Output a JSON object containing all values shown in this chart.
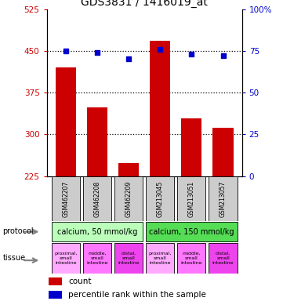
{
  "title": "GDS3831 / 1416019_at",
  "samples": [
    "GSM462207",
    "GSM462208",
    "GSM462209",
    "GSM213045",
    "GSM213051",
    "GSM213057"
  ],
  "bar_values": [
    420,
    348,
    248,
    468,
    328,
    312
  ],
  "dot_values": [
    75,
    74,
    70,
    76,
    73,
    72
  ],
  "bar_color": "#cc0000",
  "dot_color": "#0000cc",
  "ylim_left": [
    225,
    525
  ],
  "ylim_right": [
    0,
    100
  ],
  "yticks_left": [
    225,
    300,
    375,
    450,
    525
  ],
  "yticks_right": [
    0,
    25,
    50,
    75,
    100
  ],
  "ytick_labels_left": [
    "225",
    "300",
    "375",
    "450",
    "525"
  ],
  "ytick_labels_right": [
    "0",
    "25",
    "50",
    "75",
    "100%"
  ],
  "left_axis_color": "#cc0000",
  "right_axis_color": "#0000cc",
  "protocol_labels": [
    "calcium, 50 mmol/kg",
    "calcium, 150 mmol/kg"
  ],
  "protocol_colors": [
    "#bbffbb",
    "#55dd55"
  ],
  "tissue_labels": [
    "proximal,\nsmall\nintestine",
    "middle,\nsmall\nintestine",
    "distal,\nsmall\nintestine",
    "proximal,\nsmall\nintestine",
    "middle,\nsmall\nintestine",
    "distal,\nsmall\nintestine"
  ],
  "tissue_colors": [
    "#ffaaff",
    "#ff77ff",
    "#ee44ee",
    "#ffaaff",
    "#ff77ff",
    "#ee44ee"
  ],
  "legend_count_color": "#cc0000",
  "legend_dot_color": "#0000cc",
  "sample_box_color": "#cccccc",
  "grid_lines": [
    300,
    375,
    450
  ],
  "fig_width": 3.61,
  "fig_height": 3.84
}
